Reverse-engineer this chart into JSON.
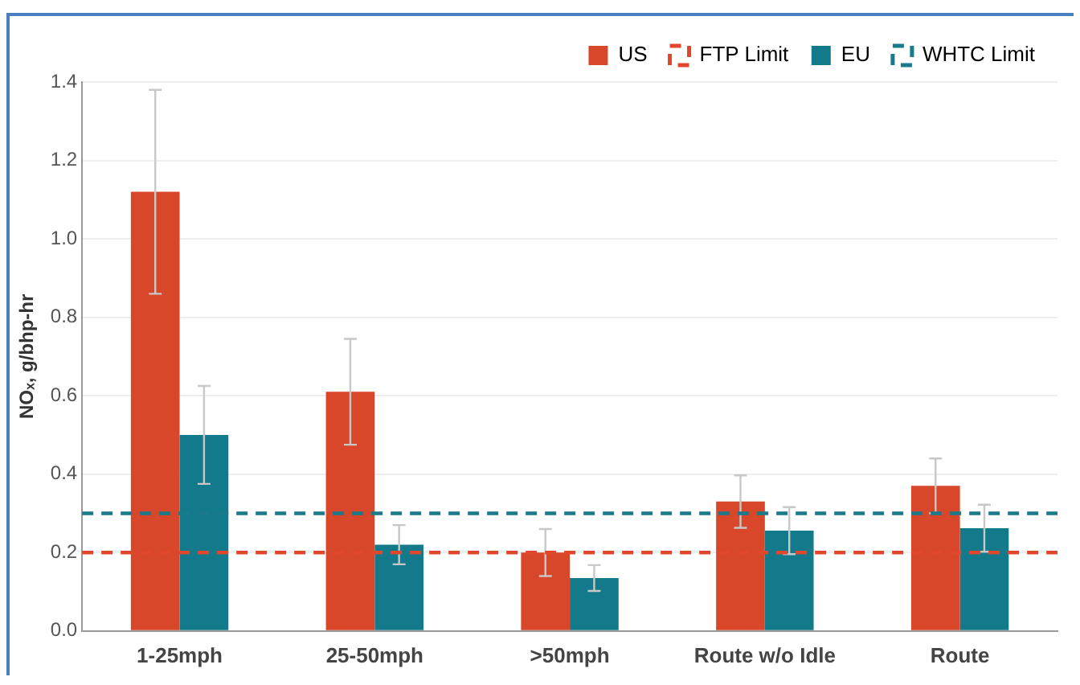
{
  "chart_data": {
    "type": "bar",
    "ylabel": "NOₓ, g/bhp-hr",
    "categories": [
      "1-25mph",
      "25-50mph",
      ">50mph",
      "Route w/o Idle",
      "Route"
    ],
    "series": [
      {
        "name": "US",
        "color": "#d9472b",
        "values": [
          1.12,
          0.61,
          0.2,
          0.33,
          0.37
        ],
        "errors": [
          0.26,
          0.135,
          0.06,
          0.067,
          0.07
        ]
      },
      {
        "name": "EU",
        "color": "#137a8c",
        "values": [
          0.5,
          0.22,
          0.135,
          0.256,
          0.262
        ],
        "errors": [
          0.125,
          0.05,
          0.033,
          0.06,
          0.06
        ]
      }
    ],
    "ref_lines": [
      {
        "axis": "y",
        "value": 0.2,
        "label": "FTP Limit",
        "color": "#e0472d",
        "line_style": "dashed"
      },
      {
        "axis": "y",
        "value": 0.3,
        "label": "WHTC Limit",
        "color": "#1a7a8c",
        "line_style": "dashed"
      }
    ],
    "ylim": [
      0,
      1.4
    ],
    "yticks": [
      {
        "value": 0,
        "label": "0.0"
      },
      0.2,
      0.4,
      0.6,
      0.8,
      {
        "value": 1,
        "label": "1.0"
      },
      1.2,
      1.4
    ],
    "grid": "y",
    "legend": "top right"
  }
}
